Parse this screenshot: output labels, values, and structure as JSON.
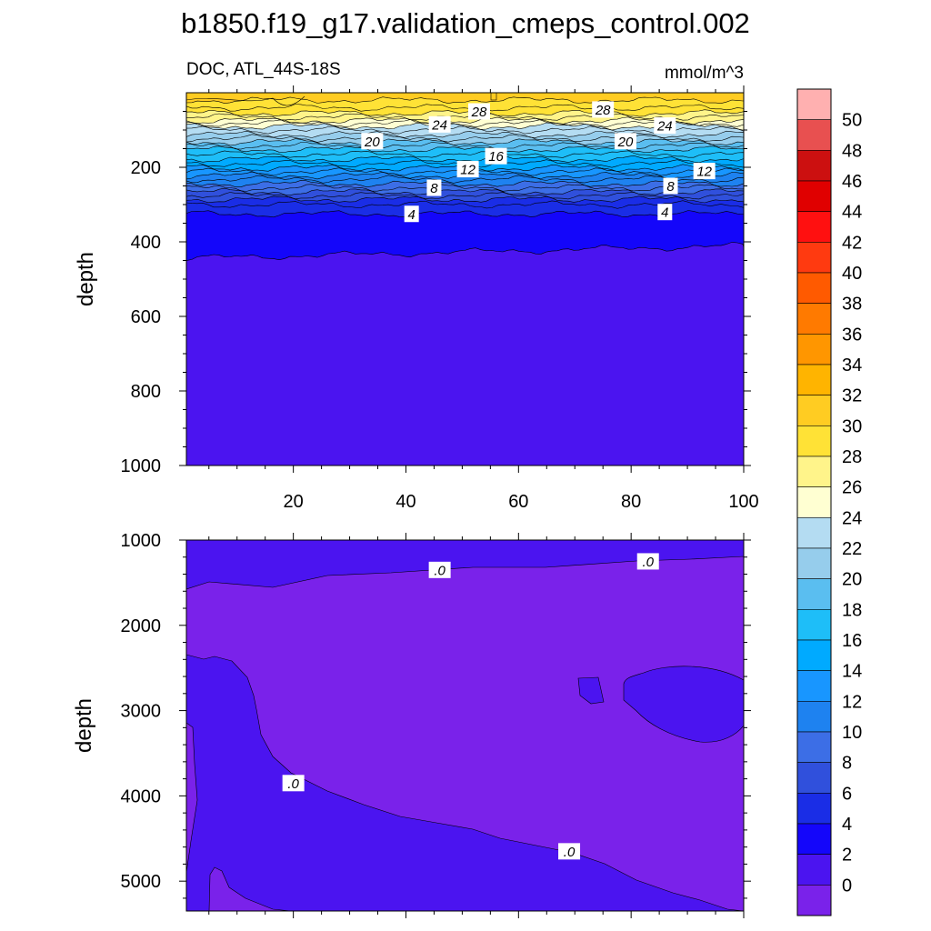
{
  "title": "b1850.f19_g17.validation_cmeps_control.002",
  "chart_data": [
    {
      "type": "contour",
      "panel": "upper",
      "left_label": "DOC, ATL_44S-18S",
      "right_label": "mmol/m^3",
      "ylabel": "depth",
      "xlabel": "",
      "xlim": [
        1,
        100
      ],
      "ylim": [
        1000,
        0
      ],
      "x_ticks": [
        20,
        40,
        60,
        80,
        100
      ],
      "y_ticks": [
        200,
        400,
        600,
        800,
        1000
      ],
      "contour_lines": [
        {
          "level": 30,
          "depth": 20
        },
        {
          "level": 29,
          "depth": 40
        },
        {
          "level": 28,
          "depth": 55
        },
        {
          "level": 27,
          "depth": 65
        },
        {
          "level": 26,
          "depth": 75
        },
        {
          "level": 25,
          "depth": 82
        },
        {
          "level": 24,
          "depth": 90
        },
        {
          "level": 23,
          "depth": 100
        },
        {
          "level": 22,
          "depth": 112
        },
        {
          "level": 21,
          "depth": 122
        },
        {
          "level": 20,
          "depth": 132
        },
        {
          "level": 19,
          "depth": 142
        },
        {
          "level": 18,
          "depth": 152
        },
        {
          "level": 17,
          "depth": 165
        },
        {
          "level": 16,
          "depth": 178
        },
        {
          "level": 15,
          "depth": 190
        },
        {
          "level": 14,
          "depth": 202
        },
        {
          "level": 13,
          "depth": 212
        },
        {
          "level": 12,
          "depth": 222
        },
        {
          "level": 11,
          "depth": 232
        },
        {
          "level": 10,
          "depth": 244
        },
        {
          "level": 9,
          "depth": 255
        },
        {
          "level": 8,
          "depth": 266
        },
        {
          "level": 7,
          "depth": 276
        },
        {
          "level": 6,
          "depth": 286
        },
        {
          "level": 5,
          "depth": 300
        },
        {
          "level": 4,
          "depth": 325
        },
        {
          "level": 2,
          "depth": 420
        }
      ],
      "line_labels": [
        {
          "text": "28",
          "x": 53,
          "depth": 50
        },
        {
          "text": "28",
          "x": 75,
          "depth": 45
        },
        {
          "text": "24",
          "x": 46,
          "depth": 85
        },
        {
          "text": "24",
          "x": 86,
          "depth": 88
        },
        {
          "text": "20",
          "x": 34,
          "depth": 130
        },
        {
          "text": "20",
          "x": 79,
          "depth": 130
        },
        {
          "text": "16",
          "x": 56,
          "depth": 170
        },
        {
          "text": "12",
          "x": 51,
          "depth": 205
        },
        {
          "text": "12",
          "x": 93,
          "depth": 210
        },
        {
          "text": "8",
          "x": 45,
          "depth": 255
        },
        {
          "text": "8",
          "x": 87,
          "depth": 250
        },
        {
          "text": "4",
          "x": 41,
          "depth": 325
        },
        {
          "text": "4",
          "x": 86,
          "depth": 320
        }
      ]
    },
    {
      "type": "contour",
      "panel": "lower",
      "ylabel": "depth",
      "xlabel": "",
      "xlim": [
        1,
        100
      ],
      "ylim": [
        5350,
        1000
      ],
      "y_ticks": [
        1000,
        2000,
        3000,
        4000,
        5000
      ],
      "line_labels": [
        {
          "text": ".0",
          "x": 46,
          "depth": 1350
        },
        {
          "text": ".0",
          "x": 83,
          "depth": 1250
        },
        {
          "text": ".0",
          "x": 20,
          "depth": 3850
        },
        {
          "text": ".0",
          "x": 69,
          "depth": 4650
        }
      ]
    }
  ],
  "colorbar": {
    "labels": [
      "50",
      "48",
      "46",
      "44",
      "42",
      "40",
      "38",
      "36",
      "34",
      "32",
      "30",
      "28",
      "26",
      "24",
      "22",
      "20",
      "18",
      "16",
      "14",
      "12",
      "10",
      "8",
      "6",
      "4",
      "2",
      "0"
    ],
    "colors": [
      "#ffb0b0",
      "#e85050",
      "#cc1010",
      "#e00000",
      "#ff1010",
      "#ff3a10",
      "#ff5a00",
      "#ff7a00",
      "#ff9600",
      "#ffb400",
      "#ffcc22",
      "#ffe236",
      "#fff48a",
      "#ffffd2",
      "#b4dcf2",
      "#96cdec",
      "#5abef0",
      "#1ebef8",
      "#00aaff",
      "#1896ff",
      "#1e82f0",
      "#3c6ee6",
      "#3050dc",
      "#1a2de6",
      "#1406fa",
      "#4b14f0",
      "#7a22ea"
    ]
  }
}
